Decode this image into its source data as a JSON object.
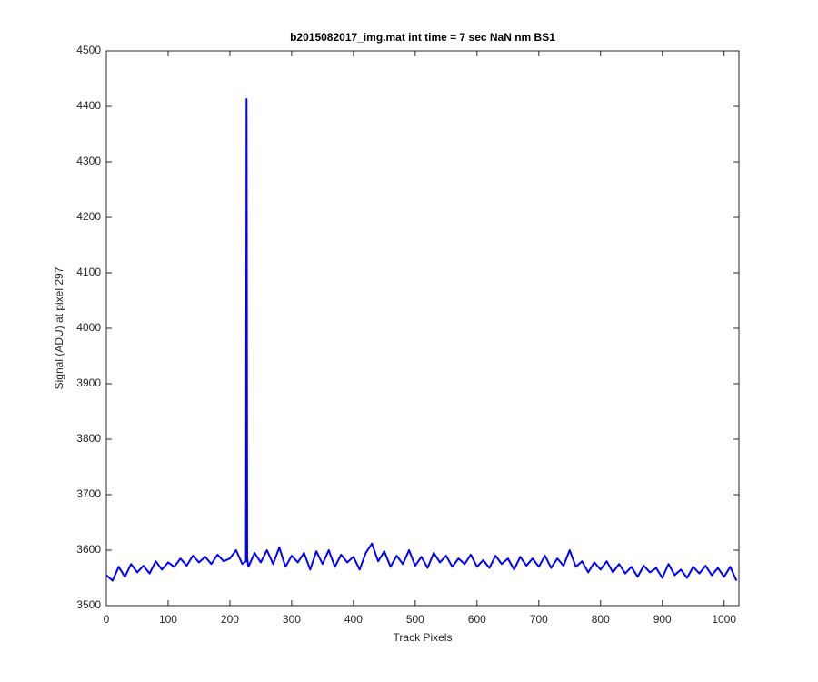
{
  "chart_data": {
    "type": "line",
    "title": "b2015082017_img.mat int time = 7 sec  NaN nm BS1",
    "x_label": "Track Pixels",
    "y_label": "Signal (ADU) at pixel 297",
    "x": [
      0,
      10,
      20,
      30,
      40,
      50,
      60,
      70,
      80,
      90,
      100,
      110,
      120,
      130,
      140,
      150,
      160,
      170,
      180,
      190,
      200,
      210,
      220,
      226,
      227,
      228,
      230,
      240,
      250,
      260,
      270,
      280,
      290,
      300,
      310,
      320,
      330,
      340,
      350,
      360,
      370,
      380,
      390,
      400,
      410,
      420,
      430,
      440,
      450,
      460,
      470,
      480,
      490,
      500,
      510,
      520,
      530,
      540,
      550,
      560,
      570,
      580,
      590,
      600,
      610,
      620,
      630,
      640,
      650,
      660,
      670,
      680,
      690,
      700,
      710,
      720,
      730,
      740,
      750,
      760,
      770,
      780,
      790,
      800,
      810,
      820,
      830,
      840,
      850,
      860,
      870,
      880,
      890,
      900,
      910,
      920,
      930,
      940,
      950,
      960,
      970,
      980,
      990,
      1000,
      1010,
      1020
    ],
    "series": [
      {
        "color": "#0000ff",
        "values": [
          3555,
          3545,
          3570,
          3552,
          3575,
          3560,
          3572,
          3558,
          3580,
          3565,
          3578,
          3570,
          3585,
          3572,
          3590,
          3578,
          3588,
          3575,
          3592,
          3580,
          3585,
          3600,
          3575,
          3580,
          4413,
          3585,
          3570,
          3595,
          3578,
          3600,
          3575,
          3605,
          3570,
          3590,
          3578,
          3595,
          3565,
          3598,
          3575,
          3600,
          3570,
          3592,
          3578,
          3588,
          3565,
          3595,
          3612,
          3580,
          3598,
          3570,
          3590,
          3575,
          3600,
          3572,
          3588,
          3568,
          3595,
          3578,
          3590,
          3570,
          3585,
          3575,
          3592,
          3570,
          3582,
          3568,
          3590,
          3575,
          3585,
          3565,
          3588,
          3572,
          3585,
          3570,
          3590,
          3568,
          3585,
          3572,
          3600,
          3570,
          3580,
          3560,
          3578,
          3565,
          3580,
          3560,
          3575,
          3558,
          3570,
          3552,
          3572,
          3560,
          3568,
          3550,
          3575,
          3555,
          3565,
          3550,
          3570,
          3558,
          3572,
          3555,
          3568,
          3552,
          3570,
          3545
        ]
      }
    ],
    "xlim": [
      0,
      1024
    ],
    "ylim": [
      3500,
      4500
    ],
    "xticks": [
      0,
      100,
      200,
      300,
      400,
      500,
      600,
      700,
      800,
      900,
      1000
    ],
    "yticks": [
      3500,
      3600,
      3700,
      3800,
      3900,
      4000,
      4100,
      4200,
      4300,
      4400,
      4500
    ]
  }
}
